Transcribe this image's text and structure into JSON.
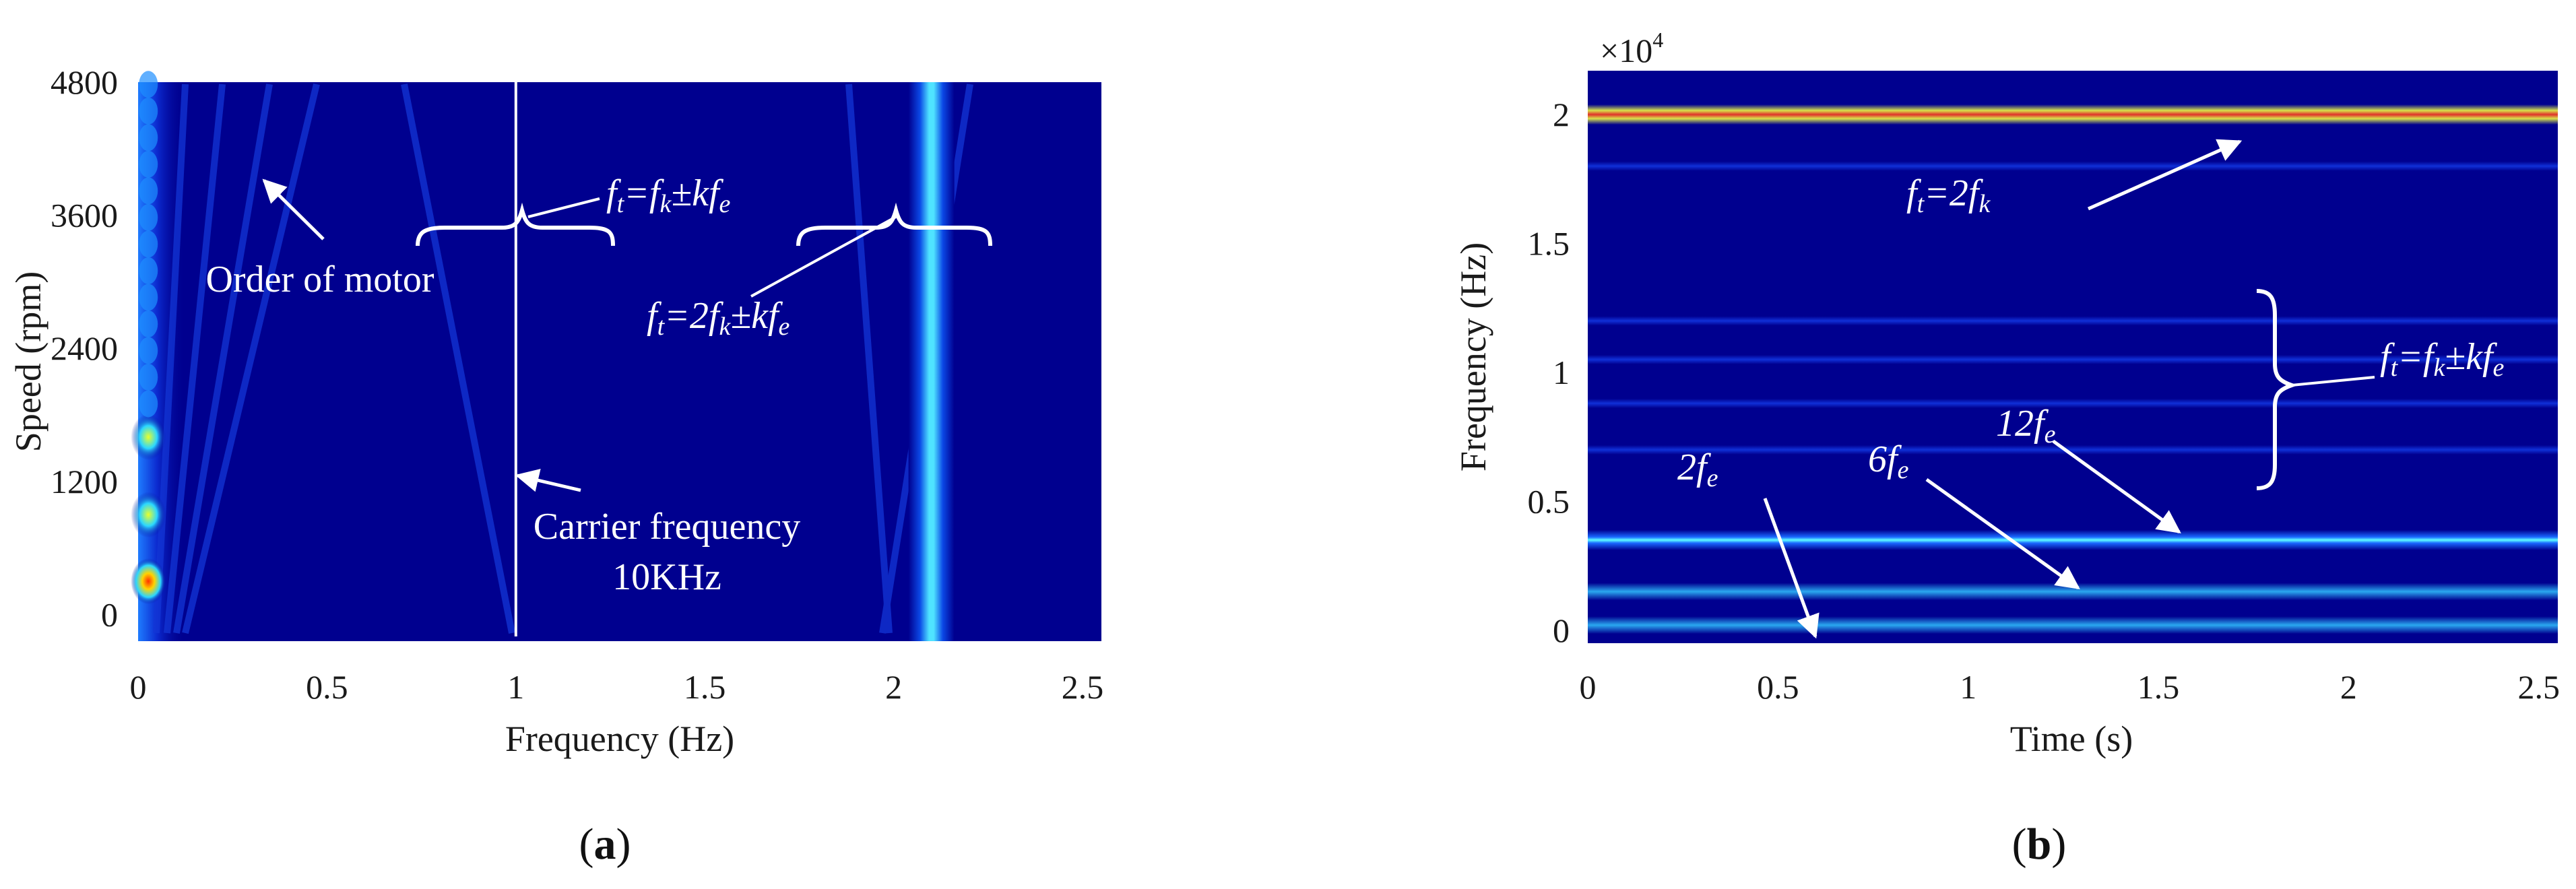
{
  "chart_data": [
    {
      "type": "heatmap",
      "panel": "a",
      "xlabel": "Frequency (Hz)",
      "ylabel": "Speed (rpm)",
      "xlim": [
        0,
        2.55
      ],
      "ylim": [
        -240,
        4800
      ],
      "xticks": [
        "0",
        "0.5",
        "1",
        "1.5",
        "2",
        "2.5"
      ],
      "xtick_values": [
        0,
        0.5,
        1,
        1.5,
        2,
        2.5
      ],
      "yticks": [
        "0",
        "1200",
        "2400",
        "3600",
        "4800"
      ],
      "ytick_values": [
        0,
        1200,
        2400,
        3600,
        4800
      ],
      "background_color": "#00008f",
      "features": [
        {
          "kind": "vertical_band",
          "x": 2.1,
          "intensity": "high"
        },
        {
          "kind": "vertical_line",
          "x": 1.0,
          "color": "#ffffff"
        },
        {
          "kind": "hot_spots",
          "x": 0.02,
          "speeds": [
            300,
            900,
            1600
          ]
        }
      ],
      "annotations": {
        "order": "Order of motor",
        "carrier_line1": "Carrier frequency",
        "carrier_line2": "10KHz",
        "eq1": {
          "a": "f",
          "a_sub": "t",
          "mid": "=f",
          "mid_sub": "k",
          "pm": "±k",
          "b": "f",
          "b_sub": "e"
        },
        "eq2": {
          "a": "f",
          "a_sub": "t",
          "mid": "=2f",
          "mid_sub": "k",
          "pm": "±k",
          "b": "f",
          "b_sub": "e"
        }
      }
    },
    {
      "type": "heatmap",
      "panel": "b",
      "xlabel": "Time (s)",
      "ylabel": "Frequency (Hz)",
      "multiplier": "×10",
      "multiplier_exp": "4",
      "xlim": [
        0,
        2.55
      ],
      "ylim": [
        -0.05,
        2.17
      ],
      "xticks": [
        "0",
        "0.5",
        "1",
        "1.5",
        "2",
        "2.5"
      ],
      "xtick_values": [
        0,
        0.5,
        1,
        1.5,
        2,
        2.5
      ],
      "yticks": [
        "0",
        "0.5",
        "1",
        "1.5",
        "2"
      ],
      "ytick_values": [
        0,
        0.5,
        1,
        1.5,
        2
      ],
      "background_color": "#00008f",
      "bands": [
        {
          "y": 2.0,
          "color": "#e0312b",
          "intensity": "max"
        },
        {
          "y": 1.8,
          "color": "#0c2bd0",
          "intensity": "low"
        },
        {
          "y": 1.2,
          "color": "#0c2bd0",
          "intensity": "low"
        },
        {
          "y": 1.05,
          "color": "#1030d8",
          "intensity": "low"
        },
        {
          "y": 0.88,
          "color": "#0c2bd0",
          "intensity": "low"
        },
        {
          "y": 0.7,
          "color": "#0c2bd0",
          "intensity": "low"
        },
        {
          "y": 0.35,
          "color": "#35c8ff",
          "intensity": "high"
        },
        {
          "y": 0.15,
          "color": "#2aa8f0",
          "intensity": "medium"
        },
        {
          "y": 0.02,
          "color": "#2aa8f0",
          "intensity": "medium"
        }
      ],
      "annotations": {
        "ft2fk": {
          "a": "f",
          "a_sub": "t",
          "mid": "=2f",
          "mid_sub": "k"
        },
        "ftfk": {
          "a": "f",
          "a_sub": "t",
          "mid": "=f",
          "mid_sub": "k",
          "pm": "±k",
          "b": "f",
          "b_sub": "e"
        },
        "h12": {
          "n": "12f",
          "sub": "e"
        },
        "h6": {
          "n": "6f",
          "sub": "e"
        },
        "h2": {
          "n": "2f",
          "sub": "e"
        }
      }
    }
  ],
  "labels": {
    "a": "(a)",
    "b": "(b)",
    "a_open": "(",
    "a_letter": "a",
    "a_close": ")",
    "b_open": "(",
    "b_letter": "b",
    "b_close": ")"
  }
}
